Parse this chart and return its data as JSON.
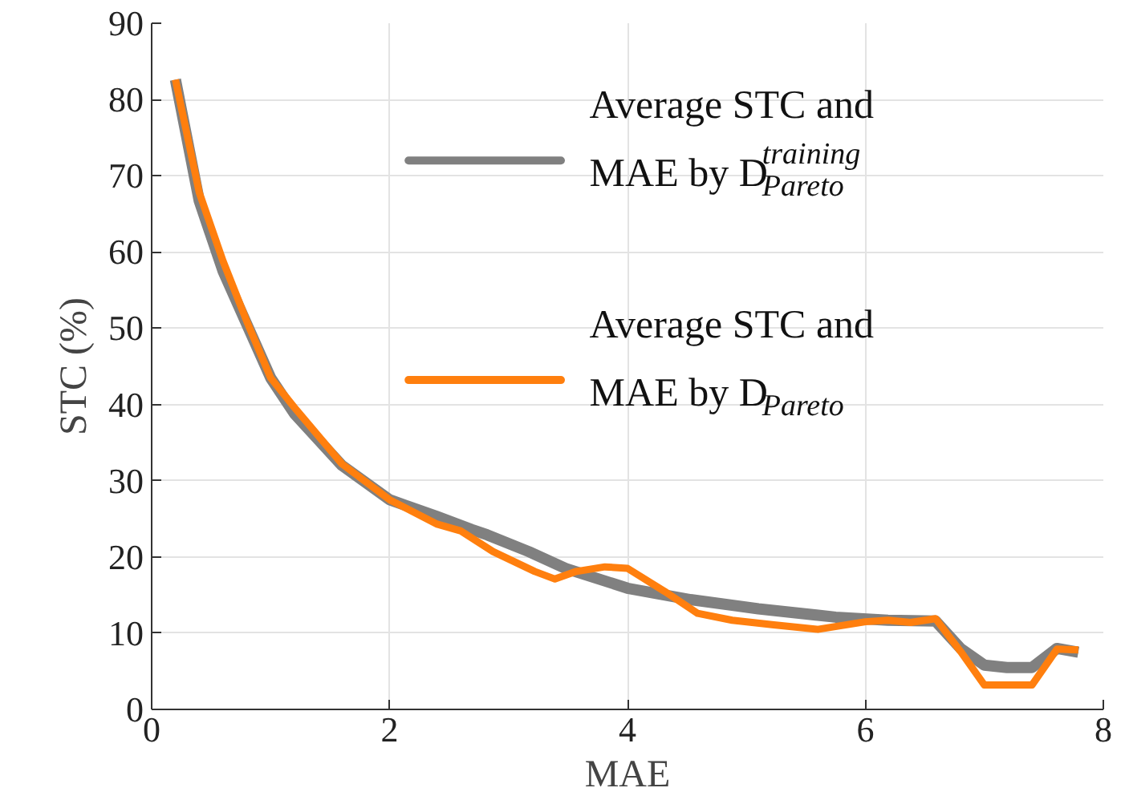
{
  "chart_data": {
    "type": "line",
    "xlabel": "MAE",
    "ylabel": "STC (%)",
    "xlim": [
      0,
      8
    ],
    "xticks": [
      0,
      2,
      4,
      6,
      8
    ],
    "ylim": [
      0,
      90
    ],
    "yticks": [
      0,
      10,
      20,
      30,
      40,
      50,
      60,
      70,
      80,
      90
    ],
    "grid": true,
    "legend": "top right",
    "line_style": "solid",
    "marker": "none",
    "series": [
      {
        "name": "Average STC and MAE by D$_{Pareto}$$^{training}$",
        "color": "#808080",
        "x": [
          0.2,
          0.4,
          0.6,
          0.8,
          1.0,
          1.2,
          1.6,
          2.0,
          2.4,
          2.69,
          2.82,
          3.17,
          3.48,
          4.0,
          4.53,
          5.1,
          5.75,
          6.19,
          6.59,
          6.8,
          7.0,
          7.19,
          7.4,
          7.61,
          7.79
        ],
        "values": [
          82.6,
          66.7,
          57.5,
          50.5,
          43.5,
          38.8,
          32.0,
          27.5,
          25.3,
          23.6,
          22.9,
          20.7,
          18.5,
          15.9,
          14.4,
          13.2,
          12.1,
          11.7,
          11.6,
          8.0,
          5.8,
          5.5,
          5.5,
          8.0,
          7.5
        ]
      },
      {
        "name": "Average STC and MAE by D$_{Pareto}$",
        "color": "#ff7f0e",
        "x": [
          0.2,
          0.4,
          0.6,
          0.8,
          1.0,
          1.2,
          1.6,
          2.0,
          2.4,
          2.6,
          2.87,
          3.22,
          3.39,
          3.57,
          3.81,
          4.0,
          4.31,
          4.59,
          4.88,
          5.23,
          5.6,
          6.0,
          6.19,
          6.38,
          6.59,
          6.8,
          7.0,
          7.4,
          7.61,
          7.79
        ],
        "values": [
          82.6,
          67.8,
          58.8,
          50.9,
          43.5,
          39.6,
          32.2,
          27.5,
          24.3,
          23.4,
          20.7,
          18.1,
          17.1,
          18.1,
          18.7,
          18.5,
          15.5,
          12.6,
          11.7,
          11.1,
          10.5,
          11.5,
          11.7,
          11.4,
          11.9,
          7.6,
          3.2,
          3.2,
          7.9,
          7.8
        ]
      }
    ]
  }
}
